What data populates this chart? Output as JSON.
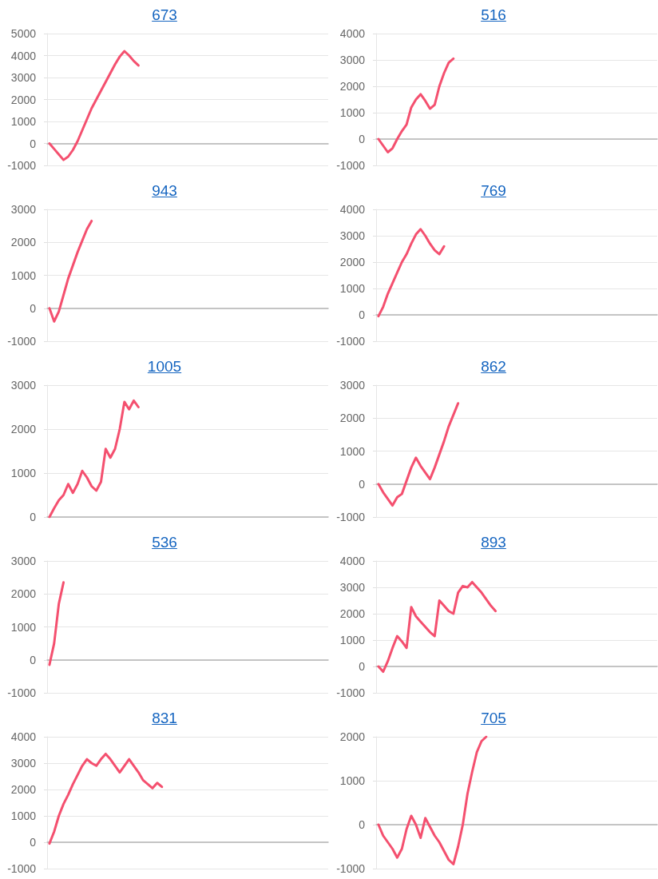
{
  "chart_data": [
    {
      "type": "line",
      "title": "673",
      "color": "#f4506f",
      "grid": "y",
      "tick_labels": "y",
      "ylim": [
        -1000,
        5000
      ],
      "yticks": [
        -1000,
        0,
        1000,
        2000,
        3000,
        4000,
        5000
      ],
      "categories": [
        null,
        null,
        null,
        null,
        null,
        null,
        null,
        null,
        null,
        null,
        null,
        null,
        null,
        null,
        null,
        null,
        null,
        null,
        null,
        null,
        null,
        null,
        null,
        null,
        null,
        null,
        null,
        null,
        null,
        null,
        null,
        null,
        null,
        null,
        null,
        null,
        null,
        null,
        null,
        null,
        null,
        null,
        null,
        null,
        null,
        null,
        null,
        null,
        null,
        null,
        null,
        null,
        null,
        null,
        null,
        null,
        null,
        null,
        null,
        null
      ],
      "values": [
        0,
        -250,
        -500,
        -750,
        -600,
        -300,
        100,
        600,
        1100,
        1600,
        2000,
        2400,
        2800,
        3200,
        3600,
        3950,
        4200,
        4000,
        3750,
        3550,
        null,
        null,
        null,
        null,
        null,
        null,
        null,
        null,
        null,
        null,
        null,
        null,
        null,
        null,
        null,
        null,
        null,
        null,
        null,
        null,
        null,
        null,
        null,
        null,
        null,
        null,
        null,
        null,
        null,
        null,
        null,
        null,
        null,
        null,
        null,
        null,
        null,
        null,
        null,
        null
      ]
    },
    {
      "type": "line",
      "title": "516",
      "color": "#f4506f",
      "grid": "y",
      "tick_labels": "y",
      "ylim": [
        -1000,
        4000
      ],
      "yticks": [
        -1000,
        0,
        1000,
        2000,
        3000,
        4000
      ],
      "categories": [
        null,
        null,
        null,
        null,
        null,
        null,
        null,
        null,
        null,
        null,
        null,
        null,
        null,
        null,
        null,
        null,
        null,
        null,
        null,
        null,
        null,
        null,
        null,
        null,
        null,
        null,
        null,
        null,
        null,
        null,
        null,
        null,
        null,
        null,
        null,
        null,
        null,
        null,
        null,
        null,
        null,
        null,
        null,
        null,
        null,
        null,
        null,
        null,
        null,
        null,
        null,
        null,
        null,
        null,
        null,
        null,
        null,
        null,
        null,
        null
      ],
      "values": [
        0,
        -250,
        -500,
        -350,
        0,
        300,
        550,
        1200,
        1500,
        1700,
        1450,
        1150,
        1300,
        2000,
        2500,
        2900,
        3050,
        null,
        null,
        null,
        null,
        null,
        null,
        null,
        null,
        null,
        null,
        null,
        null,
        null,
        null,
        null,
        null,
        null,
        null,
        null,
        null,
        null,
        null,
        null,
        null,
        null,
        null,
        null,
        null,
        null,
        null,
        null,
        null,
        null,
        null,
        null,
        null,
        null,
        null,
        null,
        null,
        null,
        null,
        null
      ]
    },
    {
      "type": "line",
      "title": "943",
      "color": "#f4506f",
      "grid": "y",
      "tick_labels": "y",
      "ylim": [
        -1000,
        3000
      ],
      "yticks": [
        -1000,
        0,
        1000,
        2000,
        3000
      ],
      "categories": [
        null,
        null,
        null,
        null,
        null,
        null,
        null,
        null,
        null,
        null,
        null,
        null,
        null,
        null,
        null,
        null,
        null,
        null,
        null,
        null,
        null,
        null,
        null,
        null,
        null,
        null,
        null,
        null,
        null,
        null,
        null,
        null,
        null,
        null,
        null,
        null,
        null,
        null,
        null,
        null,
        null,
        null,
        null,
        null,
        null,
        null,
        null,
        null,
        null,
        null,
        null,
        null,
        null,
        null,
        null,
        null,
        null,
        null,
        null,
        null
      ],
      "values": [
        0,
        -400,
        -100,
        400,
        900,
        1300,
        1700,
        2050,
        2400,
        2650,
        null,
        null,
        null,
        null,
        null,
        null,
        null,
        null,
        null,
        null,
        null,
        null,
        null,
        null,
        null,
        null,
        null,
        null,
        null,
        null,
        null,
        null,
        null,
        null,
        null,
        null,
        null,
        null,
        null,
        null,
        null,
        null,
        null,
        null,
        null,
        null,
        null,
        null,
        null,
        null,
        null,
        null,
        null,
        null,
        null,
        null,
        null,
        null,
        null,
        null
      ]
    },
    {
      "type": "line",
      "title": "769",
      "color": "#f4506f",
      "grid": "y",
      "tick_labels": "y",
      "ylim": [
        -1000,
        4000
      ],
      "yticks": [
        -1000,
        0,
        1000,
        2000,
        3000,
        4000
      ],
      "categories": [
        null,
        null,
        null,
        null,
        null,
        null,
        null,
        null,
        null,
        null,
        null,
        null,
        null,
        null,
        null,
        null,
        null,
        null,
        null,
        null,
        null,
        null,
        null,
        null,
        null,
        null,
        null,
        null,
        null,
        null,
        null,
        null,
        null,
        null,
        null,
        null,
        null,
        null,
        null,
        null,
        null,
        null,
        null,
        null,
        null,
        null,
        null,
        null,
        null,
        null,
        null,
        null,
        null,
        null,
        null,
        null,
        null,
        null,
        null,
        null
      ],
      "values": [
        -50,
        300,
        800,
        1200,
        1600,
        2000,
        2300,
        2700,
        3050,
        3250,
        3000,
        2700,
        2450,
        2300,
        2600,
        null,
        null,
        null,
        null,
        null,
        null,
        null,
        null,
        null,
        null,
        null,
        null,
        null,
        null,
        null,
        null,
        null,
        null,
        null,
        null,
        null,
        null,
        null,
        null,
        null,
        null,
        null,
        null,
        null,
        null,
        null,
        null,
        null,
        null,
        null,
        null,
        null,
        null,
        null,
        null,
        null,
        null,
        null,
        null,
        null
      ]
    },
    {
      "type": "line",
      "title": "1005",
      "color": "#f4506f",
      "grid": "y",
      "tick_labels": "y",
      "ylim": [
        0,
        3000
      ],
      "yticks": [
        0,
        1000,
        2000,
        3000
      ],
      "categories": [
        null,
        null,
        null,
        null,
        null,
        null,
        null,
        null,
        null,
        null,
        null,
        null,
        null,
        null,
        null,
        null,
        null,
        null,
        null,
        null,
        null,
        null,
        null,
        null,
        null,
        null,
        null,
        null,
        null,
        null,
        null,
        null,
        null,
        null,
        null,
        null,
        null,
        null,
        null,
        null,
        null,
        null,
        null,
        null,
        null,
        null,
        null,
        null,
        null,
        null,
        null,
        null,
        null,
        null,
        null,
        null,
        null,
        null,
        null,
        null
      ],
      "values": [
        0,
        200,
        380,
        500,
        750,
        550,
        750,
        1050,
        900,
        700,
        600,
        800,
        1550,
        1350,
        1550,
        2000,
        2620,
        2450,
        2650,
        2500,
        null,
        null,
        null,
        null,
        null,
        null,
        null,
        null,
        null,
        null,
        null,
        null,
        null,
        null,
        null,
        null,
        null,
        null,
        null,
        null,
        null,
        null,
        null,
        null,
        null,
        null,
        null,
        null,
        null,
        null,
        null,
        null,
        null,
        null,
        null,
        null,
        null,
        null,
        null,
        null
      ]
    },
    {
      "type": "line",
      "title": "862",
      "color": "#f4506f",
      "grid": "y",
      "tick_labels": "y",
      "ylim": [
        -1000,
        3000
      ],
      "yticks": [
        -1000,
        0,
        1000,
        2000,
        3000
      ],
      "categories": [
        null,
        null,
        null,
        null,
        null,
        null,
        null,
        null,
        null,
        null,
        null,
        null,
        null,
        null,
        null,
        null,
        null,
        null,
        null,
        null,
        null,
        null,
        null,
        null,
        null,
        null,
        null,
        null,
        null,
        null,
        null,
        null,
        null,
        null,
        null,
        null,
        null,
        null,
        null,
        null,
        null,
        null,
        null,
        null,
        null,
        null,
        null,
        null,
        null,
        null,
        null,
        null,
        null,
        null,
        null,
        null,
        null,
        null,
        null,
        null
      ],
      "values": [
        0,
        -250,
        -450,
        -650,
        -400,
        -300,
        100,
        500,
        800,
        550,
        350,
        150,
        500,
        900,
        1300,
        1750,
        2100,
        2450,
        null,
        null,
        null,
        null,
        null,
        null,
        null,
        null,
        null,
        null,
        null,
        null,
        null,
        null,
        null,
        null,
        null,
        null,
        null,
        null,
        null,
        null,
        null,
        null,
        null,
        null,
        null,
        null,
        null,
        null,
        null,
        null,
        null,
        null,
        null,
        null,
        null,
        null,
        null,
        null,
        null,
        null
      ]
    },
    {
      "type": "line",
      "title": "536",
      "color": "#f4506f",
      "grid": "y",
      "tick_labels": "y",
      "ylim": [
        -1000,
        3000
      ],
      "yticks": [
        -1000,
        0,
        1000,
        2000,
        3000
      ],
      "categories": [
        null,
        null,
        null,
        null,
        null,
        null,
        null,
        null,
        null,
        null,
        null,
        null,
        null,
        null,
        null,
        null,
        null,
        null,
        null,
        null,
        null,
        null,
        null,
        null,
        null,
        null,
        null,
        null,
        null,
        null,
        null,
        null,
        null,
        null,
        null,
        null,
        null,
        null,
        null,
        null,
        null,
        null,
        null,
        null,
        null,
        null,
        null,
        null,
        null,
        null,
        null,
        null,
        null,
        null,
        null,
        null,
        null,
        null,
        null,
        null
      ],
      "values": [
        -150,
        500,
        1700,
        2350,
        null,
        null,
        null,
        null,
        null,
        null,
        null,
        null,
        null,
        null,
        null,
        null,
        null,
        null,
        null,
        null,
        null,
        null,
        null,
        null,
        null,
        null,
        null,
        null,
        null,
        null,
        null,
        null,
        null,
        null,
        null,
        null,
        null,
        null,
        null,
        null,
        null,
        null,
        null,
        null,
        null,
        null,
        null,
        null,
        null,
        null,
        null,
        null,
        null,
        null,
        null,
        null,
        null,
        null,
        null,
        null
      ]
    },
    {
      "type": "line",
      "title": "893",
      "color": "#f4506f",
      "grid": "y",
      "tick_labels": "y",
      "ylim": [
        -1000,
        4000
      ],
      "yticks": [
        -1000,
        0,
        1000,
        2000,
        3000,
        4000
      ],
      "categories": [
        null,
        null,
        null,
        null,
        null,
        null,
        null,
        null,
        null,
        null,
        null,
        null,
        null,
        null,
        null,
        null,
        null,
        null,
        null,
        null,
        null,
        null,
        null,
        null,
        null,
        null,
        null,
        null,
        null,
        null,
        null,
        null,
        null,
        null,
        null,
        null,
        null,
        null,
        null,
        null,
        null,
        null,
        null,
        null,
        null,
        null,
        null,
        null,
        null,
        null,
        null,
        null,
        null,
        null,
        null,
        null,
        null,
        null,
        null,
        null
      ],
      "values": [
        0,
        -200,
        200,
        700,
        1150,
        950,
        700,
        2250,
        1900,
        1700,
        1500,
        1300,
        1150,
        2500,
        2300,
        2100,
        2000,
        2800,
        3050,
        3000,
        3200,
        3000,
        2800,
        2550,
        2300,
        2100,
        null,
        null,
        null,
        null,
        null,
        null,
        null,
        null,
        null,
        null,
        null,
        null,
        null,
        null,
        null,
        null,
        null,
        null,
        null,
        null,
        null,
        null,
        null,
        null,
        null,
        null,
        null,
        null,
        null,
        null,
        null,
        null,
        null,
        null
      ]
    },
    {
      "type": "line",
      "title": "831",
      "color": "#f4506f",
      "grid": "y",
      "tick_labels": "y",
      "ylim": [
        -1000,
        4000
      ],
      "yticks": [
        -1000,
        0,
        1000,
        2000,
        3000,
        4000
      ],
      "categories": [
        null,
        null,
        null,
        null,
        null,
        null,
        null,
        null,
        null,
        null,
        null,
        null,
        null,
        null,
        null,
        null,
        null,
        null,
        null,
        null,
        null,
        null,
        null,
        null,
        null,
        null,
        null,
        null,
        null,
        null,
        null,
        null,
        null,
        null,
        null,
        null,
        null,
        null,
        null,
        null,
        null,
        null,
        null,
        null,
        null,
        null,
        null,
        null,
        null,
        null,
        null,
        null,
        null,
        null,
        null,
        null,
        null,
        null,
        null,
        null
      ],
      "values": [
        -50,
        400,
        1000,
        1450,
        1800,
        2200,
        2550,
        2900,
        3150,
        3000,
        2900,
        3150,
        3350,
        3150,
        2900,
        2650,
        2900,
        3150,
        2900,
        2650,
        2350,
        2200,
        2050,
        2250,
        2100,
        null,
        null,
        null,
        null,
        null,
        null,
        null,
        null,
        null,
        null,
        null,
        null,
        null,
        null,
        null,
        null,
        null,
        null,
        null,
        null,
        null,
        null,
        null,
        null,
        null,
        null,
        null,
        null,
        null,
        null,
        null,
        null,
        null,
        null,
        null
      ]
    },
    {
      "type": "line",
      "title": "705",
      "color": "#f4506f",
      "grid": "y",
      "tick_labels": "y",
      "ylim": [
        -1000,
        2000
      ],
      "yticks": [
        -1000,
        0,
        1000,
        2000
      ],
      "categories": [
        null,
        null,
        null,
        null,
        null,
        null,
        null,
        null,
        null,
        null,
        null,
        null,
        null,
        null,
        null,
        null,
        null,
        null,
        null,
        null,
        null,
        null,
        null,
        null,
        null,
        null,
        null,
        null,
        null,
        null,
        null,
        null,
        null,
        null,
        null,
        null,
        null,
        null,
        null,
        null,
        null,
        null,
        null,
        null,
        null,
        null,
        null,
        null,
        null,
        null,
        null,
        null,
        null,
        null,
        null,
        null,
        null,
        null,
        null,
        null
      ],
      "values": [
        0,
        -250,
        -400,
        -550,
        -750,
        -550,
        -100,
        200,
        0,
        -300,
        150,
        -50,
        -250,
        -400,
        -600,
        -800,
        -900,
        -500,
        0,
        700,
        1200,
        1650,
        1900,
        2000,
        null,
        null,
        null,
        null,
        null,
        null,
        null,
        null,
        null,
        null,
        null,
        null,
        null,
        null,
        null,
        null,
        null,
        null,
        null,
        null,
        null,
        null,
        null,
        null,
        null,
        null,
        null,
        null,
        null,
        null,
        null,
        null,
        null,
        null,
        null,
        null
      ]
    }
  ]
}
